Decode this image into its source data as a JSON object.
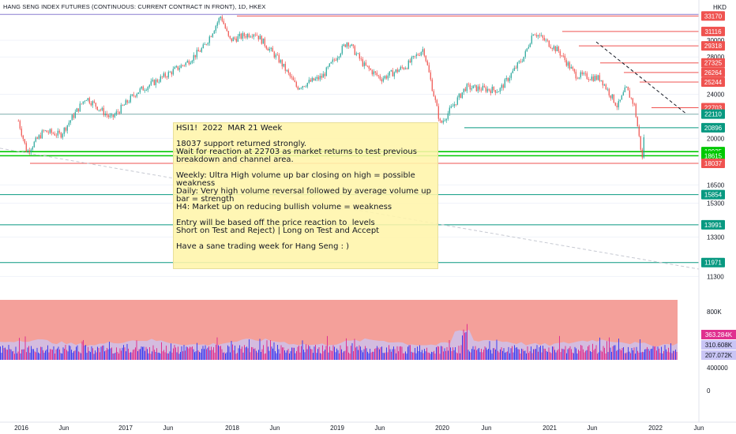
{
  "header": {
    "title": "HANG SENG INDEX FUTURES (CONTINUOUS: CURRENT CONTRACT IN FRONT), 1D, HKEX",
    "currency": "HKD"
  },
  "note": {
    "text": "HSI1!  2022  MAR 21 Week\n\n18037 support returned strongly.\nWait for reaction at 22703 as market returns to test previous breakdown and channel area.\n\nWeekly: Ultra High volume up bar closing on high = possible weakness\nDaily: Very high volume reversal followed by average volume up bar = strength\nH4: Market up on reducing bullish volume = weakness\n\nEntry will be based off the price reaction to  levels\nShort on Test and Reject) | Long on Test and Accept\n\nHave a sane trading week for Hang Seng : )"
  },
  "colors": {
    "candle_up": "#26a69a",
    "candle_down": "#ef5350",
    "resistance": "#ef5350",
    "support": "#089981",
    "highlight": "#00c800",
    "volume_bg": "#f4a09a",
    "volume_up": "#3d3df0",
    "volume_down": "#e0308f",
    "volume_ma": "#c9c5f5",
    "axis_text": "#131722"
  },
  "chart_data": {
    "type": "line",
    "title": "HANG SENG INDEX FUTURES (CONTINUOUS: CURRENT CONTRACT IN FRONT), 1D, HKEX",
    "x_axis": {
      "labels": [
        "2016",
        "Jun",
        "2017",
        "Jun",
        "2018",
        "Jun",
        "2019",
        "Jun",
        "2020",
        "Jun",
        "2021",
        "Jun",
        "2022",
        "Jun"
      ]
    },
    "price_axis": {
      "scale": "log",
      "ylim": [
        10600,
        34300
      ],
      "ticks": [
        11300,
        13300,
        15300,
        16500,
        20000,
        24000,
        28000,
        30000
      ]
    },
    "price_series": {
      "name": "HSI1!",
      "points": [
        [
          "2016-01",
          21500
        ],
        [
          "2016-02",
          18900
        ],
        [
          "2016-04",
          20600
        ],
        [
          "2016-06",
          20300
        ],
        [
          "2016-09",
          23700
        ],
        [
          "2016-12",
          21700
        ],
        [
          "2017-03",
          24200
        ],
        [
          "2017-06",
          25700
        ],
        [
          "2017-09",
          27400
        ],
        [
          "2017-11",
          29200
        ],
        [
          "2018-01",
          33200
        ],
        [
          "2018-02",
          30000
        ],
        [
          "2018-05",
          31000
        ],
        [
          "2018-08",
          27500
        ],
        [
          "2018-10",
          24700
        ],
        [
          "2019-01",
          25800
        ],
        [
          "2019-04",
          29900
        ],
        [
          "2019-06",
          27000
        ],
        [
          "2019-08",
          25600
        ],
        [
          "2019-11",
          27000
        ],
        [
          "2020-01",
          29000
        ],
        [
          "2020-03",
          21200
        ],
        [
          "2020-06",
          24700
        ],
        [
          "2020-10",
          24400
        ],
        [
          "2021-01",
          28200
        ],
        [
          "2021-02",
          31100
        ],
        [
          "2021-05",
          28700
        ],
        [
          "2021-07",
          26000
        ],
        [
          "2021-10",
          25600
        ],
        [
          "2021-12",
          22800
        ],
        [
          "2022-01",
          24600
        ],
        [
          "2022-02",
          22900
        ],
        [
          "2022-03",
          18037
        ],
        [
          "2022-03-21",
          22110
        ]
      ]
    },
    "levels": [
      {
        "label": "33170",
        "value": 33170,
        "kind": "resistance"
      },
      {
        "label": "31116",
        "value": 31116,
        "kind": "resistance"
      },
      {
        "label": "29318",
        "value": 29318,
        "kind": "resistance"
      },
      {
        "label": "27325",
        "value": 27325,
        "kind": "resistance"
      },
      {
        "label": "26264",
        "value": 26264,
        "kind": "resistance"
      },
      {
        "label": "25244",
        "value": 25244,
        "kind": "resistance"
      },
      {
        "label": "22703",
        "value": 22703,
        "kind": "resistance"
      },
      {
        "label": "22110",
        "value": 22110,
        "kind": "support"
      },
      {
        "label": "20896",
        "value": 20896,
        "kind": "support"
      },
      {
        "label": "18935",
        "value": 18935,
        "kind": "highlight"
      },
      {
        "label": "18615",
        "value": 18615,
        "kind": "highlight"
      },
      {
        "label": "18037",
        "value": 18037,
        "kind": "resistance"
      },
      {
        "label": "15854",
        "value": 15854,
        "kind": "support"
      },
      {
        "label": "13991",
        "value": 13991,
        "kind": "support"
      },
      {
        "label": "11971",
        "value": 11971,
        "kind": "support"
      }
    ],
    "volume_axis": {
      "ticks": [
        "800K",
        "400000",
        "0"
      ],
      "tick_values": [
        800000,
        400000,
        0
      ]
    },
    "volume_labels": [
      {
        "label": "363.284K",
        "value": 363284
      },
      {
        "label": "310.608K",
        "value": 310608
      },
      {
        "label": "207.072K",
        "value": 207072
      }
    ]
  }
}
